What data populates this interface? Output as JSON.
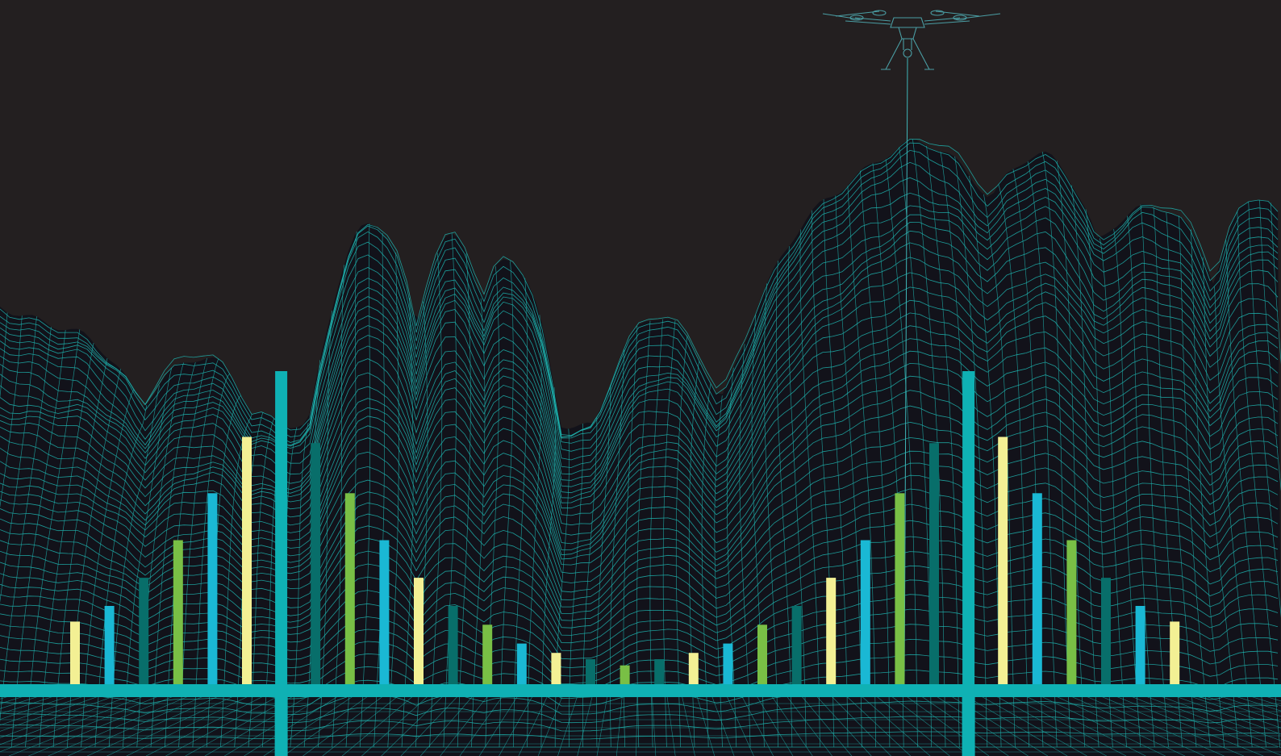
{
  "colors": {
    "sky": "#231f20",
    "terrain_fill": "#12121a",
    "mesh": "#1fb5b0",
    "axis": "#0fb1b4",
    "drone": "#4a9da3",
    "tether": "#3fb6b8"
  },
  "scene": {
    "icons": [
      "quadcopter-drone-icon",
      "wireframe-terrain",
      "tether-line"
    ]
  },
  "chart_data": {
    "type": "bar",
    "note_visible_text": "",
    "bar_colors": [
      "#f3f094",
      "#1ab8d4",
      "#086e6a",
      "#79bf45",
      "#1ab8d4",
      "#f3f094",
      "#0fb1b4",
      "#086e6a",
      "#79bf45",
      "#1ab8d4",
      "#f3f094",
      "#086e6a",
      "#79bf45",
      "#1ab8d4",
      "#f3f094",
      "#086e6a",
      "#79bf45",
      "#086e6a",
      "#f3f094",
      "#1ab8d4",
      "#79bf45",
      "#086e6a",
      "#f3f094",
      "#1ab8d4",
      "#79bf45",
      "#086e6a",
      "#0fb1b4",
      "#f3f094",
      "#1ab8d4",
      "#79bf45",
      "#086e6a",
      "#1ab8d4",
      "#f3f094"
    ],
    "values": [
      0.2,
      0.25,
      0.34,
      0.46,
      0.61,
      0.79,
      1.0,
      0.77,
      0.61,
      0.46,
      0.34,
      0.25,
      0.19,
      0.13,
      0.1,
      0.08,
      0.06,
      0.08,
      0.1,
      0.13,
      0.19,
      0.25,
      0.34,
      0.46,
      0.61,
      0.77,
      1.0,
      0.79,
      0.61,
      0.46,
      0.34,
      0.25,
      0.2
    ],
    "ylim": [
      0,
      1
    ],
    "grid": false,
    "legend": "none"
  }
}
